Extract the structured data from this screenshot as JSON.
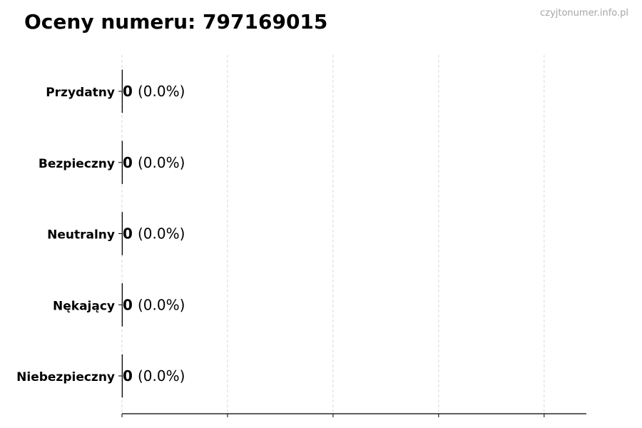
{
  "chart_data": {
    "type": "bar",
    "orientation": "horizontal",
    "title": "Oceny numeru: 797169015",
    "watermark": "czyjtonumer.info.pl",
    "categories": [
      "Przydatny",
      "Bezpieczny",
      "Neutralny",
      "Nękający",
      "Niebezpieczny"
    ],
    "values": [
      0,
      0,
      0,
      0,
      0
    ],
    "value_labels": [
      "0",
      "0",
      "0",
      "0",
      "0"
    ],
    "percent_labels": [
      "(0.0%)",
      "(0.0%)",
      "(0.0%)",
      "(0.0%)",
      "(0.0%)"
    ],
    "xlim": [
      0,
      4.4
    ],
    "xticks": [
      0,
      1,
      2,
      3,
      4
    ],
    "xtick_labels_shown": false,
    "grid": "vertical dashed",
    "colors": {
      "grid": "#d9d9d9",
      "axis": "#000000",
      "watermark": "#a6a6a6"
    }
  }
}
